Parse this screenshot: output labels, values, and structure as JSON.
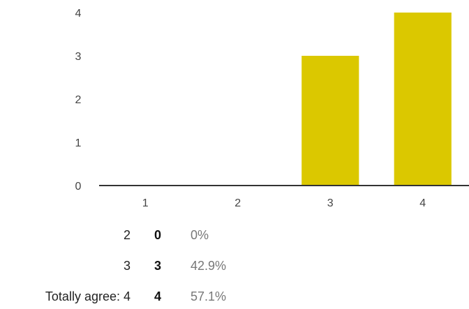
{
  "chart_data": {
    "type": "bar",
    "categories": [
      "1",
      "2",
      "3",
      "4"
    ],
    "values": [
      0,
      0,
      3,
      4
    ],
    "ylim": [
      0,
      4
    ],
    "yticks": [
      0,
      1,
      2,
      3,
      4
    ],
    "bar_color": "#dbc800",
    "title": "",
    "xlabel": "",
    "ylabel": ""
  },
  "summary": {
    "rows": [
      {
        "label": "2",
        "count": "0",
        "percent": "0%"
      },
      {
        "label": "3",
        "count": "3",
        "percent": "42.9%"
      },
      {
        "label": "Totally agree: 4",
        "count": "4",
        "percent": "57.1%"
      }
    ]
  }
}
